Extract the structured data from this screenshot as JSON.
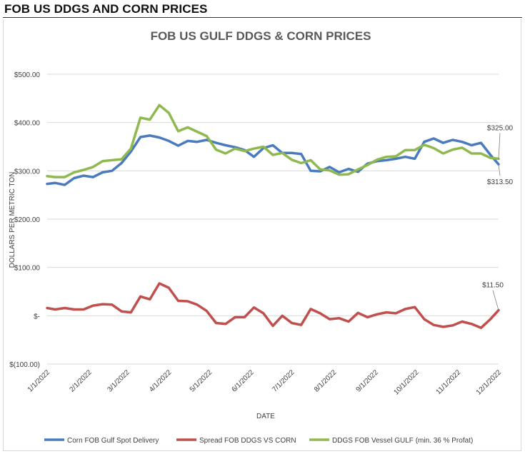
{
  "page_heading": "FOB US DDGS AND CORN PRICES",
  "chart_data": {
    "type": "line",
    "title": "FOB US GULF DDGS & CORN PRICES",
    "xlabel": "DATE",
    "ylabel": "DOLLARS PER METRIC TON",
    "ylim": [
      -100,
      500
    ],
    "yticks": [
      {
        "value": 500,
        "label": "$500.00"
      },
      {
        "value": 400,
        "label": "$400.00"
      },
      {
        "value": 300,
        "label": "$300.00"
      },
      {
        "value": 200,
        "label": "$200.00"
      },
      {
        "value": 100,
        "label": "$100.00"
      },
      {
        "value": 0,
        "label": "$-"
      },
      {
        "value": -100,
        "label": "$(100.00)"
      }
    ],
    "xticks": [
      {
        "date": "2022-01-01",
        "label": "1/1/2022"
      },
      {
        "date": "2022-02-01",
        "label": "2/1/2022"
      },
      {
        "date": "2022-03-01",
        "label": "3/1/2022"
      },
      {
        "date": "2022-04-01",
        "label": "4/1/2022"
      },
      {
        "date": "2022-05-01",
        "label": "5/1/2022"
      },
      {
        "date": "2022-06-01",
        "label": "6/1/2022"
      },
      {
        "date": "2022-07-01",
        "label": "7/1/2022"
      },
      {
        "date": "2022-08-01",
        "label": "8/1/2022"
      },
      {
        "date": "2022-09-01",
        "label": "9/1/2022"
      },
      {
        "date": "2022-10-01",
        "label": "10/1/2022"
      },
      {
        "date": "2022-11-01",
        "label": "11/1/2022"
      },
      {
        "date": "2022-12-01",
        "label": "12/1/2022"
      }
    ],
    "grid": "horizontal",
    "legend_position": "bottom",
    "x": [
      "2022-01-01",
      "2022-01-07",
      "2022-01-14",
      "2022-01-21",
      "2022-01-28",
      "2022-02-04",
      "2022-02-11",
      "2022-02-18",
      "2022-02-25",
      "2022-03-04",
      "2022-03-11",
      "2022-03-18",
      "2022-03-25",
      "2022-04-01",
      "2022-04-08",
      "2022-04-15",
      "2022-04-22",
      "2022-04-29",
      "2022-05-06",
      "2022-05-13",
      "2022-05-20",
      "2022-05-27",
      "2022-06-03",
      "2022-06-10",
      "2022-06-17",
      "2022-06-24",
      "2022-07-01",
      "2022-07-08",
      "2022-07-15",
      "2022-07-22",
      "2022-07-29",
      "2022-08-05",
      "2022-08-12",
      "2022-08-19",
      "2022-08-26",
      "2022-09-02",
      "2022-09-09",
      "2022-09-16",
      "2022-09-23",
      "2022-09-30",
      "2022-10-07",
      "2022-10-14",
      "2022-10-21",
      "2022-10-28",
      "2022-11-04",
      "2022-11-11",
      "2022-11-18",
      "2022-11-25",
      "2022-12-01"
    ],
    "series": [
      {
        "name": "Corn FOB Gulf Spot Delivery",
        "color": "#4a7bbf",
        "values": [
          273,
          275,
          271,
          285,
          290,
          287,
          297,
          300,
          316,
          340,
          370,
          373,
          369,
          362,
          352,
          362,
          360,
          364,
          358,
          353,
          349,
          343,
          329,
          347,
          353,
          337,
          337,
          335,
          300,
          299,
          308,
          297,
          304,
          298,
          315,
          320,
          322,
          325,
          329,
          325,
          360,
          367,
          358,
          364,
          360,
          353,
          358,
          333,
          313.5
        ]
      },
      {
        "name": "Spread FOB DDGS VS CORN",
        "color": "#c0504d",
        "values": [
          16,
          13,
          16,
          13,
          13,
          21,
          24,
          23,
          9,
          7,
          40,
          34,
          67,
          58,
          31,
          30,
          23,
          10,
          -15,
          -17,
          -3,
          -3,
          17,
          5,
          -21,
          0,
          -15,
          -19,
          14,
          5,
          -7,
          -5,
          -12,
          6,
          -3,
          3,
          7,
          5,
          14,
          18,
          -7,
          -19,
          -23,
          -20,
          -12,
          -17,
          -25,
          -7,
          11.5
        ]
      },
      {
        "name": "DDGS FOB Vessel GULF  (min. 36 % Profat)",
        "color": "#8fb94f",
        "values": [
          289,
          287,
          287,
          297,
          302,
          308,
          320,
          322,
          324,
          346,
          410,
          406,
          436,
          420,
          382,
          390,
          381,
          372,
          344,
          336,
          346,
          341,
          346,
          350,
          333,
          337,
          323,
          316,
          322,
          303,
          301,
          292,
          293,
          303,
          312,
          323,
          329,
          330,
          343,
          343,
          354,
          347,
          336,
          344,
          348,
          336,
          336,
          327,
          325
        ]
      }
    ],
    "annotations": [
      {
        "text": "$325.00",
        "date": "2022-12-01",
        "value": 325
      },
      {
        "text": "$313.50",
        "date": "2022-12-01",
        "value": 313.5
      },
      {
        "text": "$11.50",
        "date": "2022-12-01",
        "value": 11.5
      }
    ]
  }
}
